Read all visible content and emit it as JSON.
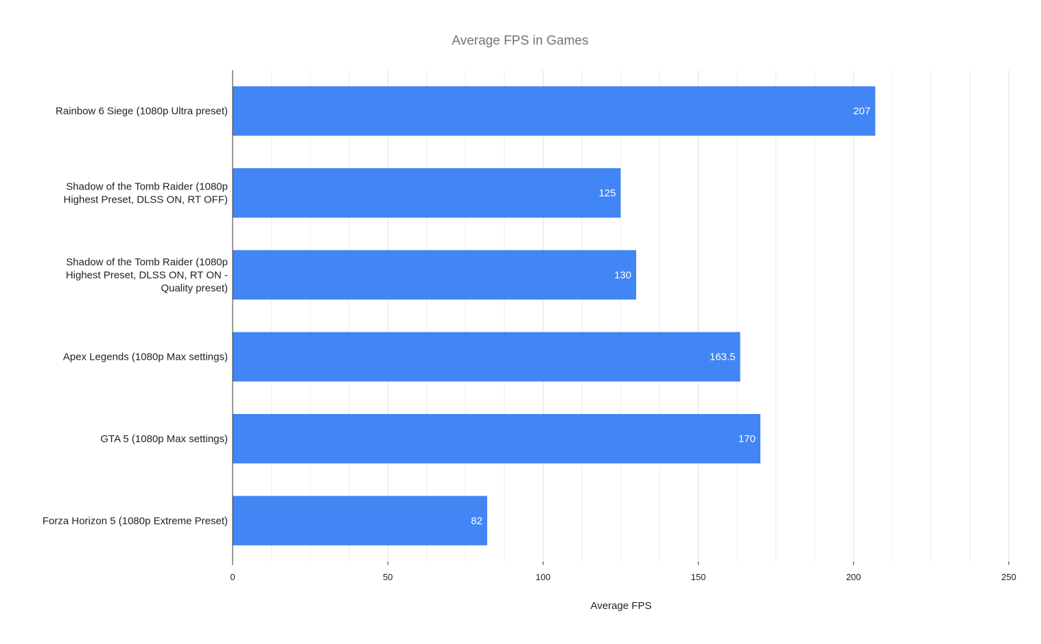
{
  "chart_data": {
    "type": "bar",
    "orientation": "horizontal",
    "title": "Average FPS in Games",
    "xlabel": "Average FPS",
    "ylabel": "",
    "categories": [
      [
        "Rainbow 6 Siege (1080p Ultra preset)"
      ],
      [
        "Shadow of the Tomb Raider (1080p",
        "Highest Preset, DLSS ON, RT OFF)"
      ],
      [
        "Shadow of the Tomb Raider (1080p",
        "Highest Preset, DLSS ON, RT ON -",
        "Quality preset)"
      ],
      [
        "Apex Legends (1080p Max settings)"
      ],
      [
        "GTA 5 (1080p Max settings)"
      ],
      [
        "Forza Horizon 5 (1080p Extreme Preset)"
      ]
    ],
    "values": [
      207,
      125,
      130,
      163.5,
      170,
      82
    ],
    "data_labels": [
      "207",
      "125",
      "130",
      "163.5",
      "170",
      "82"
    ],
    "xlim": [
      0,
      250
    ],
    "x_ticks": [
      0,
      50,
      100,
      150,
      200,
      250
    ],
    "minor_gridlines_per_major": 3,
    "grid": true,
    "legend": "none",
    "bar_color": "#4285f4",
    "gridline_color": "#e0e0e0",
    "axis_color": "#333333"
  }
}
